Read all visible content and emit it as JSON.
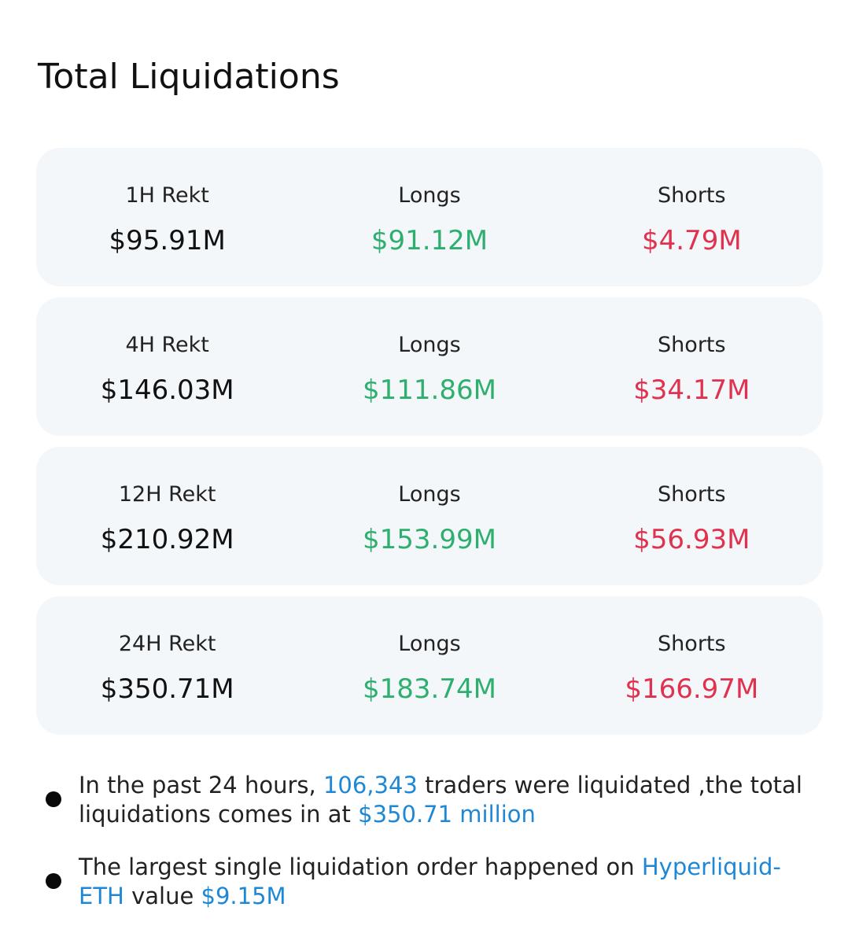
{
  "title": "Total Liquidations",
  "rows": [
    {
      "period_label": "1H Rekt",
      "total": "$95.91M",
      "longs_label": "Longs",
      "longs": "$91.12M",
      "shorts_label": "Shorts",
      "shorts": "$4.79M"
    },
    {
      "period_label": "4H Rekt",
      "total": "$146.03M",
      "longs_label": "Longs",
      "longs": "$111.86M",
      "shorts_label": "Shorts",
      "shorts": "$34.17M"
    },
    {
      "period_label": "12H Rekt",
      "total": "$210.92M",
      "longs_label": "Longs",
      "longs": "$153.99M",
      "shorts_label": "Shorts",
      "shorts": "$56.93M"
    },
    {
      "period_label": "24H Rekt",
      "total": "$350.71M",
      "longs_label": "Longs",
      "longs": "$183.74M",
      "shorts_label": "Shorts",
      "shorts": "$166.97M"
    }
  ],
  "summary": [
    {
      "text_1": "In the past 24 hours, ",
      "highlight_1": "106,343",
      "text_2": " traders were liquidated ,the total liquidations comes in at ",
      "highlight_2": "$350.71 million"
    },
    {
      "text_1": "The largest single liquidation order happened on ",
      "highlight_1": "Hyperliquid-ETH",
      "text_2": " value ",
      "highlight_2": "$9.15M"
    }
  ],
  "colors": {
    "card_background": "#f4f7f9",
    "longs": "#2eaf6f",
    "shorts": "#e0324f",
    "highlight": "#1e88d6",
    "text": "#111111"
  }
}
